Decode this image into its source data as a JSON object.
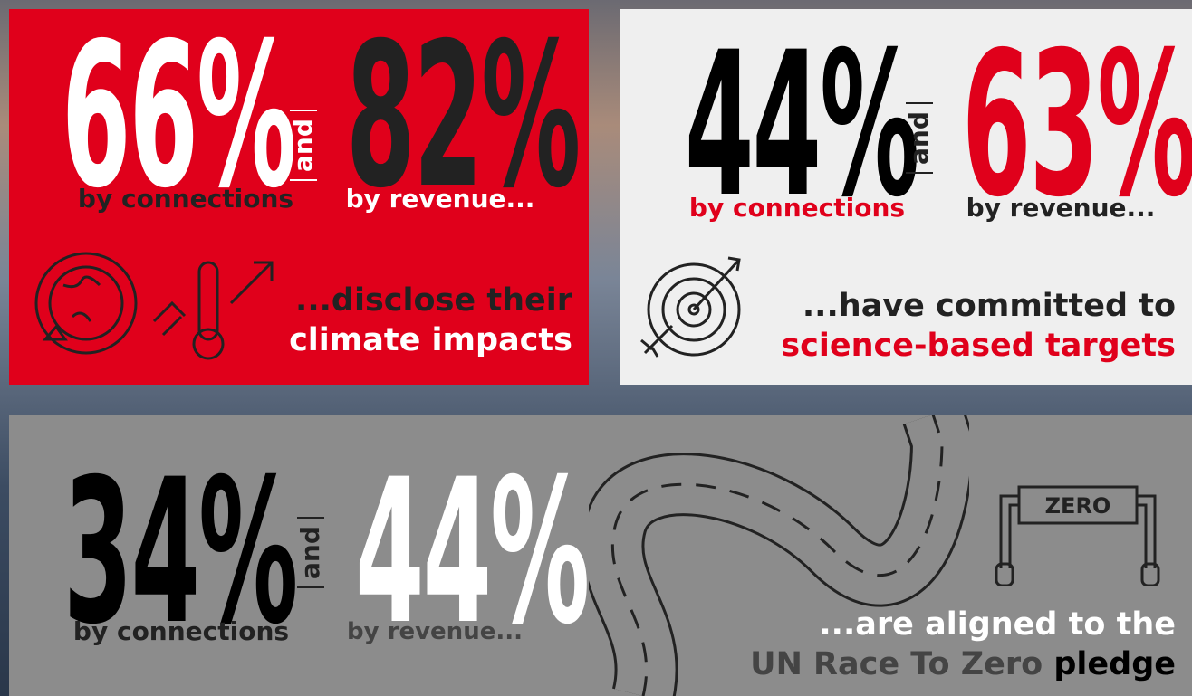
{
  "panels": [
    {
      "stats": [
        {
          "value": "66%",
          "label": "by connections"
        },
        {
          "value": "82%",
          "label": "by revenue..."
        }
      ],
      "conjunction": "and",
      "caption": [
        "...disclose their",
        "climate impacts"
      ]
    },
    {
      "stats": [
        {
          "value": "44%",
          "label": "by connections"
        },
        {
          "value": "63%",
          "label": "by revenue..."
        }
      ],
      "conjunction": "and",
      "caption": [
        "...have committed to",
        "science-based targets"
      ]
    },
    {
      "stats": [
        {
          "value": "34%",
          "label": "by connections"
        },
        {
          "value": "44%",
          "label": "by revenue..."
        }
      ],
      "conjunction": "and",
      "caption": [
        "...are aligned to the",
        "UN Race To Zero",
        "pledge"
      ],
      "icon_text": "ZERO"
    }
  ]
}
